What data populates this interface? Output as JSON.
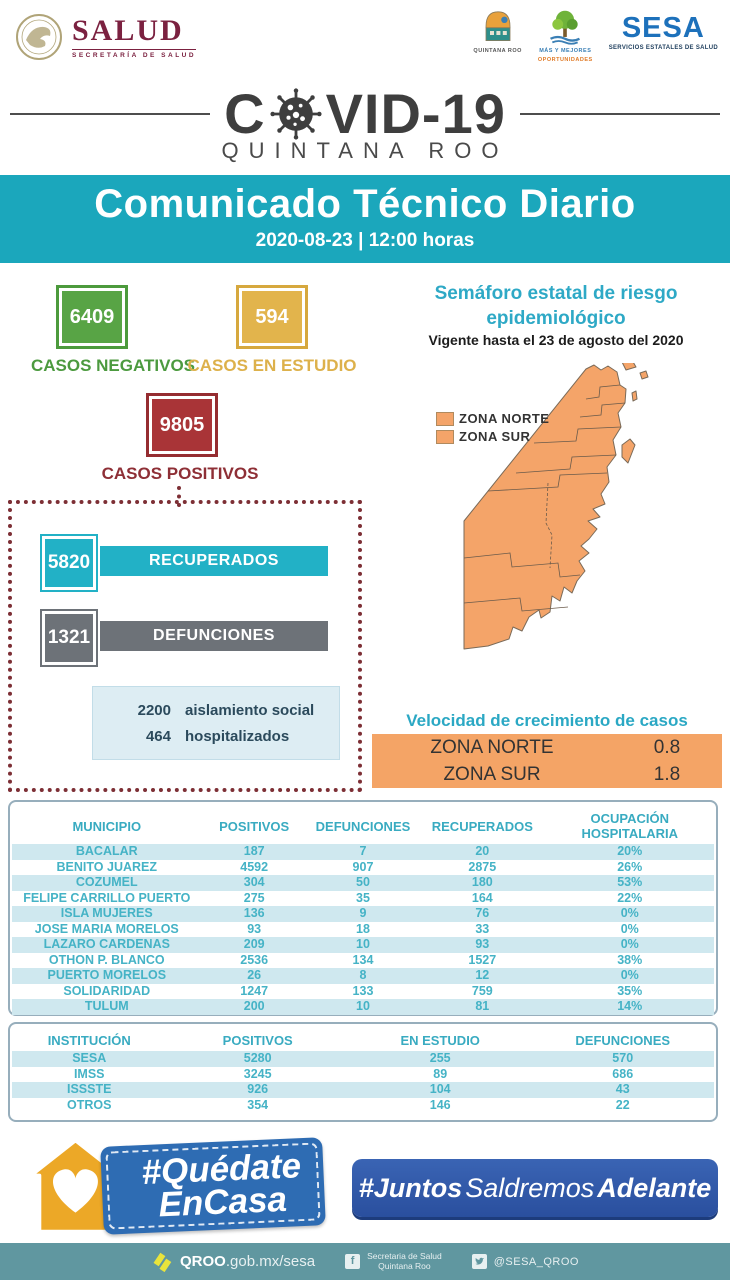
{
  "header": {
    "salud": {
      "title": "SALUD",
      "subtitle": "SECRETARÍA DE SALUD"
    },
    "logos": {
      "quintana_roo": {
        "caption": "QUINTANA ROO"
      },
      "oportunidades": {
        "line1": "MÁS Y MEJORES",
        "line2": "OPORTUNIDADES"
      },
      "sesa": {
        "title": "SESA",
        "subtitle": "SERVICIOS ESTATALES DE SALUD"
      }
    }
  },
  "covid": {
    "part1": "C",
    "part2": "VID-19",
    "subtitle": "QUINTANA ROO"
  },
  "banner": {
    "title": "Comunicado Técnico Diario",
    "datetime": "2020-08-23 | 12:00 horas"
  },
  "stats": {
    "negativos": {
      "value": "6409",
      "label": "CASOS NEGATIVOS",
      "color": "#58a445"
    },
    "en_estudio": {
      "value": "594",
      "label": "CASOS EN ESTUDIO",
      "color": "#e2b44c"
    },
    "positivos": {
      "value": "9805",
      "label": "CASOS POSITIVOS",
      "color": "#a93437"
    },
    "recuperados": {
      "value": "5820",
      "label": "RECUPERADOS",
      "color": "#22b1c6"
    },
    "defunciones": {
      "value": "1321",
      "label": "DEFUNCIONES",
      "color": "#6d7278"
    },
    "aislamiento": {
      "value": "2200",
      "label": "aislamiento social"
    },
    "hospitalizados": {
      "value": "464",
      "label": "hospitalizados"
    }
  },
  "semaforo": {
    "title": "Semáforo estatal de riesgo epidemiológico",
    "valid_until": "Vigente hasta el 23 de agosto del 2020",
    "legend": [
      {
        "label": "ZONA NORTE"
      },
      {
        "label": "ZONA SUR"
      }
    ],
    "map_color": "#f4a469"
  },
  "growth": {
    "title": "Velocidad de crecimiento de casos",
    "rows": [
      {
        "zone": "ZONA NORTE",
        "value": "0.8"
      },
      {
        "zone": "ZONA SUR",
        "value": "1.8"
      }
    ]
  },
  "municipios_table": {
    "headers": [
      "MUNICIPIO",
      "POSITIVOS",
      "DEFUNCIONES",
      "RECUPERADOS",
      "OCUPACIÓN HOSPITALARIA"
    ],
    "rows": [
      [
        "BACALAR",
        "187",
        "7",
        "20",
        "20%"
      ],
      [
        "BENITO JUAREZ",
        "4592",
        "907",
        "2875",
        "26%"
      ],
      [
        "COZUMEL",
        "304",
        "50",
        "180",
        "53%"
      ],
      [
        "FELIPE CARRILLO PUERTO",
        "275",
        "35",
        "164",
        "22%"
      ],
      [
        "ISLA MUJERES",
        "136",
        "9",
        "76",
        "0%"
      ],
      [
        "JOSE MARIA MORELOS",
        "93",
        "18",
        "33",
        "0%"
      ],
      [
        "LAZARO CARDENAS",
        "209",
        "10",
        "93",
        "0%"
      ],
      [
        "OTHON P. BLANCO",
        "2536",
        "134",
        "1527",
        "38%"
      ],
      [
        "PUERTO MORELOS",
        "26",
        "8",
        "12",
        "0%"
      ],
      [
        "SOLIDARIDAD",
        "1247",
        "133",
        "759",
        "35%"
      ],
      [
        "TULUM",
        "200",
        "10",
        "81",
        "14%"
      ]
    ]
  },
  "instituciones_table": {
    "headers": [
      "INSTITUCIÓN",
      "POSITIVOS",
      "EN ESTUDIO",
      "DEFUNCIONES"
    ],
    "rows": [
      [
        "SESA",
        "5280",
        "255",
        "570"
      ],
      [
        "IMSS",
        "3245",
        "89",
        "686"
      ],
      [
        "ISSSTE",
        "926",
        "104",
        "43"
      ],
      [
        "OTROS",
        "354",
        "146",
        "22"
      ]
    ]
  },
  "footer": {
    "quedate": {
      "line1": "#Quédate",
      "line2": "EnCasa"
    },
    "juntos": {
      "part1": "#Juntos",
      "part2": "Saldremos",
      "part3": "Adelante"
    },
    "bar": {
      "site_bold": "QROO",
      "site_rest": ".gob.mx/sesa",
      "facebook_line1": "Secretaria de Salud",
      "facebook_line2": "Quintana Roo",
      "twitter_handle": "@SESA_QROO",
      "facebook_glyph": "f"
    }
  },
  "colors": {
    "banner_teal": "#1ba7bc",
    "table_text_teal": "#45b3c6",
    "row_stripe": "#cfe8ef",
    "growth_orange": "#f4a466",
    "bottom_bar": "#6097a0",
    "quedate_blue": "#2e6cb3",
    "juntos_blue": "#2e55a8",
    "dotted_maroon": "#7d2f35"
  }
}
